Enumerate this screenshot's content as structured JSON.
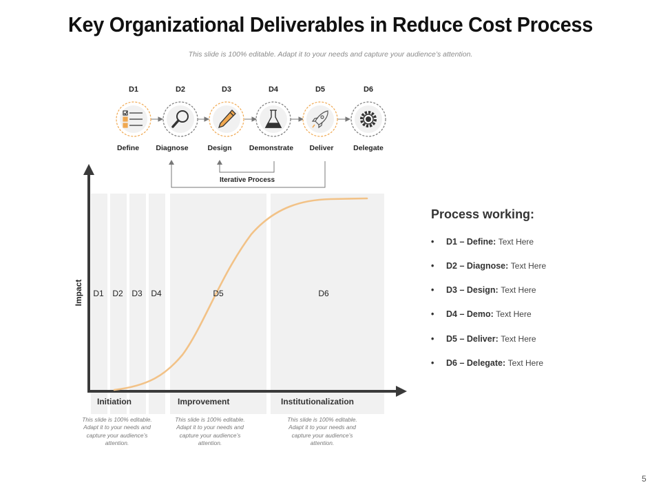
{
  "slide": {
    "title": "Key Organizational Deliverables in Reduce Cost Process",
    "subtitle": "This slide is 100% editable. Adapt it to your needs and capture your audience’s attention.",
    "page_number": "5"
  },
  "steps": [
    {
      "code": "D1",
      "label": "Define",
      "icon": "checklist-icon"
    },
    {
      "code": "D2",
      "label": "Diagnose",
      "icon": "magnifier-icon"
    },
    {
      "code": "D3",
      "label": "Design",
      "icon": "pencil-icon"
    },
    {
      "code": "D4",
      "label": "Demonstrate",
      "icon": "flask-icon"
    },
    {
      "code": "D5",
      "label": "Deliver",
      "icon": "rocket-icon"
    },
    {
      "code": "D6",
      "label": "Delegate",
      "icon": "gear-icon"
    }
  ],
  "iterative_label": "Iterative Process",
  "chart": {
    "y_axis_label": "Impact",
    "band_codes": [
      "D1",
      "D2",
      "D3",
      "D4",
      "D5",
      "D6"
    ],
    "phases": [
      {
        "name": "Initiation",
        "note": "This slide is 100% editable. Adapt it to your needs and capture your audience’s attention."
      },
      {
        "name": "Improvement",
        "note": "This slide is 100% editable. Adapt it to your needs and capture your audience’s attention."
      },
      {
        "name": "Institutionalization",
        "note": "This slide is 100% editable. Adapt it to your needs and capture your audience’s attention."
      }
    ]
  },
  "process_working": {
    "title": "Process working:",
    "items": [
      {
        "key": "D1 – Define:",
        "value": "Text Here"
      },
      {
        "key": "D2 – Diagnose:",
        "value": "Text Here"
      },
      {
        "key": "D3 – Design:",
        "value": "Text Here"
      },
      {
        "key": "D4 – Demo:",
        "value": "Text Here"
      },
      {
        "key": "D5 – Deliver:",
        "value": "Text Here"
      },
      {
        "key": "D6 – Delegate:",
        "value": "Text Here"
      }
    ]
  },
  "colors": {
    "accent": "#f2c287",
    "dashed_accent": "#f0a850",
    "axis": "#3a3a3a",
    "band": "#f1f1f1"
  }
}
